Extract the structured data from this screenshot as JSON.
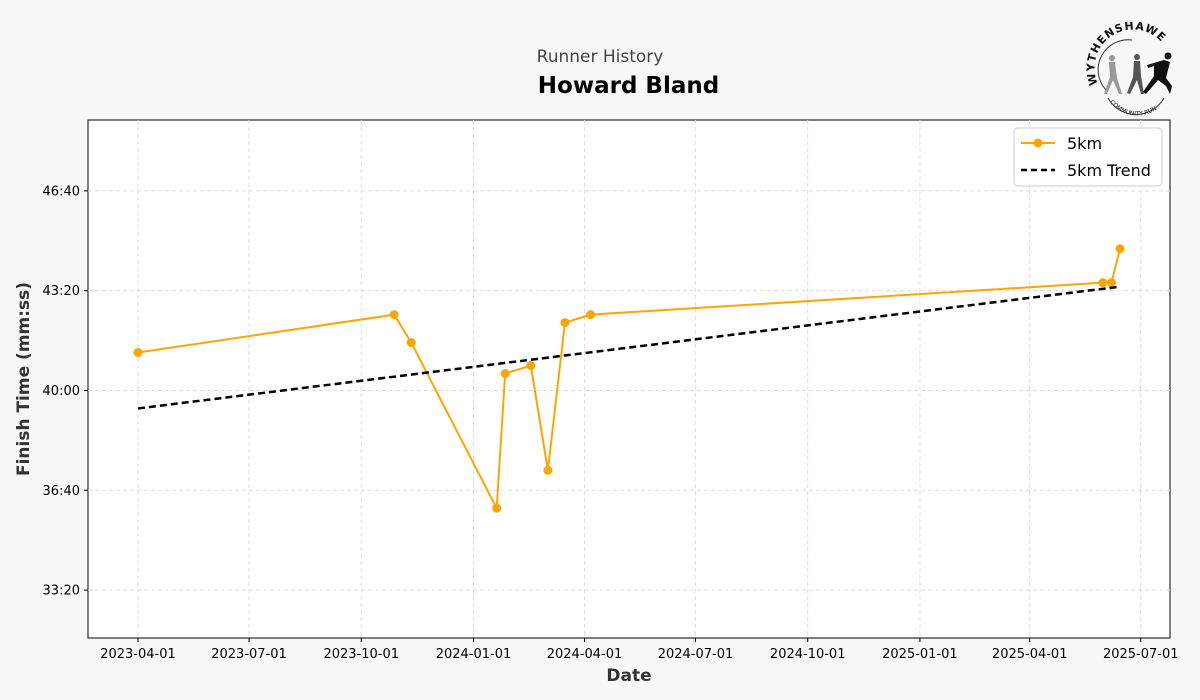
{
  "header": {
    "subtitle": "Runner History",
    "title": "Howard Bland"
  },
  "logo": {
    "top_text": "WYTHENSHAWE",
    "bottom_text": "COMMUNITY RUN"
  },
  "chart_data": {
    "type": "line",
    "xlabel": "Date",
    "ylabel": "Finish Time (mm:ss)",
    "xlim": [
      "2023-02-19",
      "2025-07-25"
    ],
    "ylim": [
      "31:44",
      "49:02"
    ],
    "x_ticks": [
      "2023-04-01",
      "2023-07-01",
      "2023-10-01",
      "2024-01-01",
      "2024-04-01",
      "2024-07-01",
      "2024-10-01",
      "2025-01-01",
      "2025-04-01",
      "2025-07-01"
    ],
    "y_ticks": [
      "33:20",
      "36:40",
      "40:00",
      "43:20",
      "46:40"
    ],
    "grid": true,
    "legend_position": "top-right",
    "series": [
      {
        "name": "5km",
        "color": "#ffa500",
        "style": "solid-markers",
        "x": [
          "2023-04-01",
          "2023-10-28",
          "2023-11-11",
          "2024-01-20",
          "2024-01-27",
          "2024-02-17",
          "2024-03-02",
          "2024-03-16",
          "2024-04-06",
          "2025-05-31",
          "2025-06-07",
          "2025-06-14"
        ],
        "y": [
          "41:16",
          "42:32",
          "41:36",
          "36:04",
          "40:34",
          "40:50",
          "37:20",
          "42:16",
          "42:32",
          "43:36",
          "43:36",
          "44:44"
        ]
      },
      {
        "name": "5km Trend",
        "color": "#000000",
        "style": "dashed",
        "x": [
          "2023-04-01",
          "2025-06-14"
        ],
        "y": [
          "39:24",
          "43:28"
        ]
      }
    ]
  }
}
